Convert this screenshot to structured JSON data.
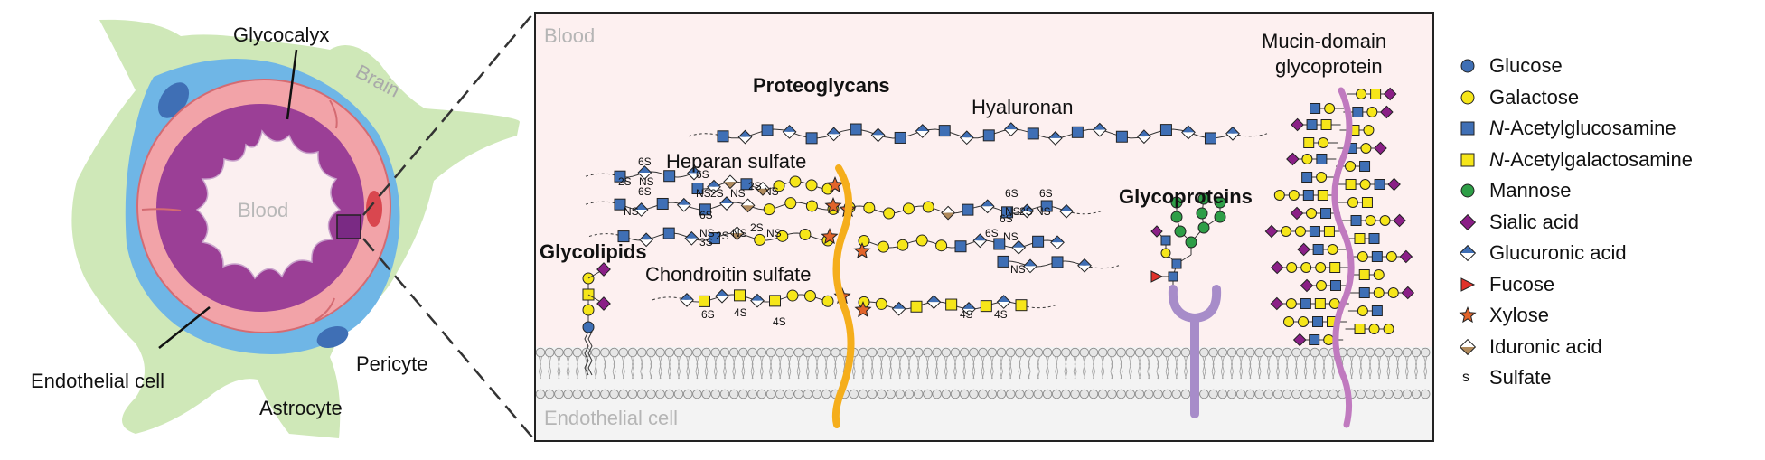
{
  "left_panel": {
    "glycocalyx_label": "Glycocalyx",
    "brain_label": "Brain",
    "blood_label": "Blood",
    "endothelial_label": "Endothelial cell",
    "pericyte_label": "Pericyte",
    "astrocyte_label": "Astrocyte"
  },
  "zoom_panel": {
    "blood_label": "Blood",
    "endothelial_label": "Endothelial cell",
    "proteoglycans_label": "Proteoglycans",
    "hyaluronan_label": "Hyaluronan",
    "heparan_label": "Heparan sulfate",
    "chondroitin_label": "Chondroitin sulfate",
    "glycolipids_label": "Glycolipids",
    "glycoproteins_label": "Glycoproteins",
    "mucin_label_1": "Mucin-domain",
    "mucin_label_2": "glycoprotein",
    "mod": {
      "s6": "6S",
      "s2": "2S",
      "s3": "3S",
      "s4": "4S",
      "ns": "NS"
    }
  },
  "legend": [
    {
      "label": "Glucose",
      "italic_prefix": "",
      "shape": "circle",
      "color": "#3f6fb5"
    },
    {
      "label": "Galactose",
      "italic_prefix": "",
      "shape": "circle",
      "color": "#f6e619"
    },
    {
      "label": "-Acetylglucosamine",
      "italic_prefix": "N",
      "shape": "square",
      "color": "#3f6fb5"
    },
    {
      "label": "-Acetylgalactosamine",
      "italic_prefix": "N",
      "shape": "square",
      "color": "#f6e619"
    },
    {
      "label": "Mannose",
      "italic_prefix": "",
      "shape": "circle",
      "color": "#2e9e47"
    },
    {
      "label": "Sialic acid",
      "italic_prefix": "",
      "shape": "diamond",
      "color": "#8a1f86"
    },
    {
      "label": "Glucuronic acid",
      "italic_prefix": "",
      "shape": "halfdiamond",
      "color": "#3f6fb5"
    },
    {
      "label": "Fucose",
      "italic_prefix": "",
      "shape": "triangle",
      "color": "#e0322b"
    },
    {
      "label": "Xylose",
      "italic_prefix": "",
      "shape": "star",
      "color": "#e2642a"
    },
    {
      "label": "Iduronic acid",
      "italic_prefix": "",
      "shape": "halfdiamond",
      "color": "#b08a5c"
    },
    {
      "label": "Sulfate",
      "italic_prefix": "",
      "shape": "glyph",
      "glyph": "s",
      "color": "#111111"
    }
  ],
  "colors": {
    "endothelium": "#f2a3a8",
    "lumen_purple": "#9b3f96",
    "pericyte": "#6fb6e6",
    "astrocyte": "#cfe8b8",
    "blood_bg": "#fdf0f0",
    "cell_bg": "#f3f3f3",
    "core_protein": "#f5ae1c",
    "mucin": "#c07abf",
    "glycoprotein": "#a78cc9"
  }
}
